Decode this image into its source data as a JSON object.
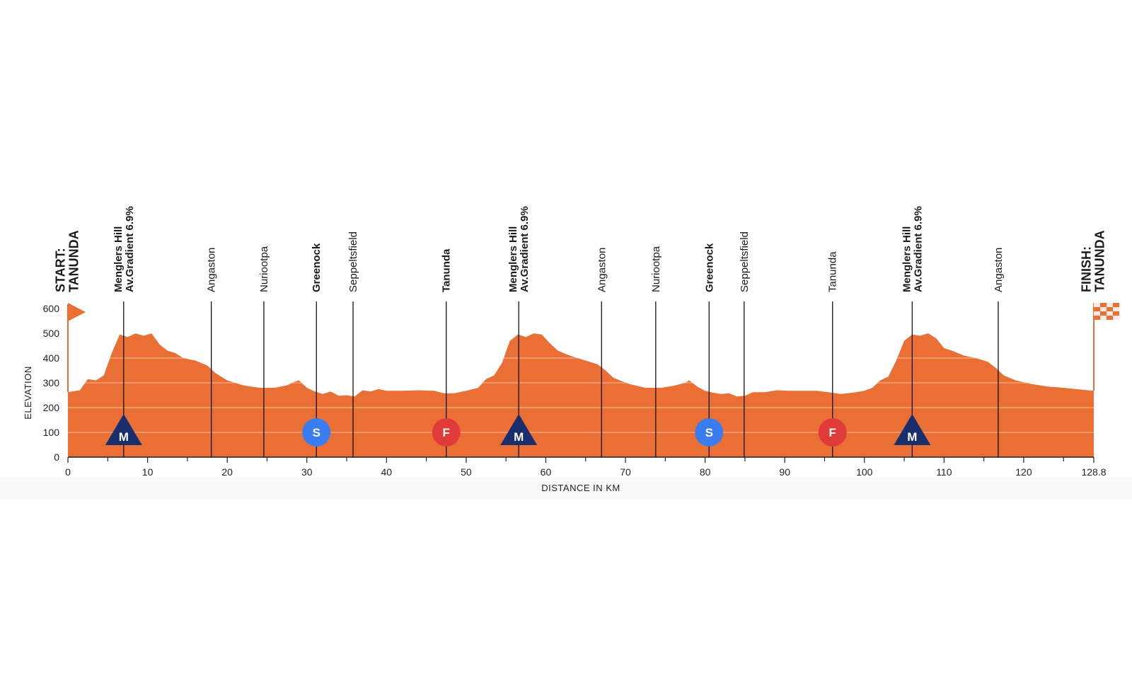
{
  "chart_data": {
    "type": "area",
    "title": "",
    "xlabel": "DISTANCE IN KM",
    "ylabel": "ELEVATION",
    "xlim": [
      0,
      128.8
    ],
    "ylim": [
      0,
      600
    ],
    "x_ticks": [
      "0",
      "10",
      "20",
      "30",
      "40",
      "50",
      "60",
      "70",
      "80",
      "90",
      "100",
      "110",
      "120",
      "128.8"
    ],
    "y_ticks": [
      "0",
      "100",
      "200",
      "300",
      "400",
      "500",
      "600"
    ],
    "grid": "horizontal",
    "colors": {
      "fill": "#ea6f35",
      "climb": "#1a2e6e",
      "sprint": "#3a7df0",
      "feed": "#e03a3a",
      "text": "#222222"
    },
    "series": [
      {
        "values": [
          [
            0,
            262
          ],
          [
            1.5,
            270
          ],
          [
            2.5,
            315
          ],
          [
            3.5,
            310
          ],
          [
            4.5,
            330
          ],
          [
            5.5,
            420
          ],
          [
            6.5,
            495
          ],
          [
            7.5,
            485
          ],
          [
            8.5,
            500
          ],
          [
            9.5,
            490
          ],
          [
            10.5,
            500
          ],
          [
            11.5,
            455
          ],
          [
            12.5,
            430
          ],
          [
            13.5,
            420
          ],
          [
            14.5,
            400
          ],
          [
            16,
            390
          ],
          [
            17.5,
            370
          ],
          [
            18.5,
            340
          ],
          [
            20,
            310
          ],
          [
            22,
            290
          ],
          [
            24,
            280
          ],
          [
            26,
            280
          ],
          [
            27.5,
            290
          ],
          [
            28.5,
            305
          ],
          [
            29,
            310
          ],
          [
            30,
            280
          ],
          [
            31,
            265
          ],
          [
            32,
            255
          ],
          [
            33,
            265
          ],
          [
            34,
            248
          ],
          [
            35,
            250
          ],
          [
            36,
            245
          ],
          [
            37,
            270
          ],
          [
            38,
            265
          ],
          [
            39,
            275
          ],
          [
            40,
            268
          ],
          [
            42,
            268
          ],
          [
            44,
            270
          ],
          [
            46,
            268
          ],
          [
            47.2,
            258
          ],
          [
            48.5,
            258
          ],
          [
            50,
            268
          ],
          [
            51.5,
            280
          ],
          [
            52.5,
            315
          ],
          [
            53.5,
            330
          ],
          [
            54.5,
            380
          ],
          [
            55.5,
            470
          ],
          [
            56.5,
            495
          ],
          [
            57.5,
            485
          ],
          [
            58.5,
            500
          ],
          [
            59.5,
            495
          ],
          [
            60.5,
            460
          ],
          [
            61.5,
            430
          ],
          [
            63,
            410
          ],
          [
            64.5,
            395
          ],
          [
            66.5,
            375
          ],
          [
            67.5,
            350
          ],
          [
            68.5,
            320
          ],
          [
            70.5,
            295
          ],
          [
            72.5,
            280
          ],
          [
            74.5,
            280
          ],
          [
            76,
            288
          ],
          [
            77.5,
            300
          ],
          [
            78,
            310
          ],
          [
            79,
            285
          ],
          [
            80,
            268
          ],
          [
            81,
            260
          ],
          [
            82,
            255
          ],
          [
            83,
            258
          ],
          [
            84,
            245
          ],
          [
            85,
            248
          ],
          [
            86,
            262
          ],
          [
            87.5,
            262
          ],
          [
            89,
            270
          ],
          [
            90.5,
            268
          ],
          [
            92,
            268
          ],
          [
            94,
            268
          ],
          [
            96,
            260
          ],
          [
            97,
            255
          ],
          [
            98.5,
            260
          ],
          [
            100,
            268
          ],
          [
            101,
            280
          ],
          [
            102,
            310
          ],
          [
            103,
            325
          ],
          [
            104,
            390
          ],
          [
            105,
            470
          ],
          [
            106,
            495
          ],
          [
            107,
            490
          ],
          [
            108,
            500
          ],
          [
            109,
            480
          ],
          [
            110,
            440
          ],
          [
            111,
            430
          ],
          [
            112.5,
            410
          ],
          [
            114,
            400
          ],
          [
            115.5,
            385
          ],
          [
            116.5,
            360
          ],
          [
            117.5,
            330
          ],
          [
            119,
            310
          ],
          [
            121,
            295
          ],
          [
            123,
            285
          ],
          [
            125,
            280
          ],
          [
            126.5,
            275
          ],
          [
            128.8,
            268
          ]
        ]
      }
    ],
    "waypoints": [
      {
        "km": 0,
        "label_lines": [
          "START:",
          "TANUNDA"
        ],
        "bold": true,
        "line": false,
        "marker": "start-flag"
      },
      {
        "km": 7,
        "label_lines": [
          "Menglers Hill",
          "Av.Gradient 6.9%"
        ],
        "bold": true,
        "line": true,
        "marker": "climb",
        "marker_text": "M"
      },
      {
        "km": 18,
        "label_lines": [
          "Angaston"
        ],
        "bold": false,
        "line": true,
        "marker": ""
      },
      {
        "km": 24.6,
        "label_lines": [
          "Nuriootpa"
        ],
        "bold": false,
        "line": true,
        "marker": ""
      },
      {
        "km": 31.2,
        "label_lines": [
          "Greenock"
        ],
        "bold": true,
        "line": true,
        "marker": "sprint",
        "marker_text": "S"
      },
      {
        "km": 35.8,
        "label_lines": [
          "Seppeltsfield"
        ],
        "bold": false,
        "line": true,
        "marker": ""
      },
      {
        "km": 47.5,
        "label_lines": [
          "Tanunda"
        ],
        "bold": true,
        "line": true,
        "marker": "feed",
        "marker_text": "F"
      },
      {
        "km": 56.6,
        "label_lines": [
          "Menglers Hill",
          "Av.Gradient 6.9%"
        ],
        "bold": true,
        "line": true,
        "marker": "climb",
        "marker_text": "M"
      },
      {
        "km": 67,
        "label_lines": [
          "Angaston"
        ],
        "bold": false,
        "line": true,
        "marker": ""
      },
      {
        "km": 73.8,
        "label_lines": [
          "Nuriootpa"
        ],
        "bold": false,
        "line": true,
        "marker": ""
      },
      {
        "km": 80.5,
        "label_lines": [
          "Greenock"
        ],
        "bold": true,
        "line": true,
        "marker": "sprint",
        "marker_text": "S"
      },
      {
        "km": 84.9,
        "label_lines": [
          "Seppeltsfield"
        ],
        "bold": false,
        "line": true,
        "marker": ""
      },
      {
        "km": 96,
        "label_lines": [
          "Tanunda"
        ],
        "bold": false,
        "line": true,
        "marker": "feed",
        "marker_text": "F"
      },
      {
        "km": 106,
        "label_lines": [
          "Menglers Hill",
          "Av.Gradient 6.9%"
        ],
        "bold": true,
        "line": true,
        "marker": "climb",
        "marker_text": "M"
      },
      {
        "km": 116.8,
        "label_lines": [
          "Angaston"
        ],
        "bold": false,
        "line": true,
        "marker": ""
      },
      {
        "km": 128.8,
        "label_lines": [
          "FINISH:",
          "TANUNDA"
        ],
        "bold": true,
        "line": false,
        "marker": "finish-flag"
      }
    ]
  }
}
